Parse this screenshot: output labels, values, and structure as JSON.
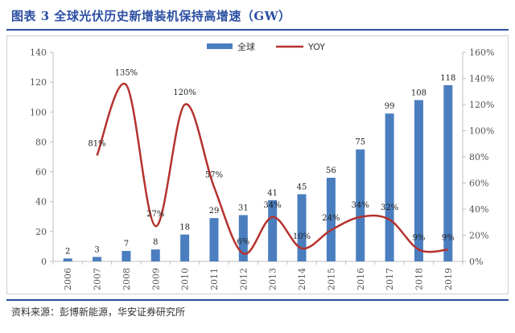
{
  "title": "图表 3 全球光伏历史新增装机保持高增速（GW）",
  "source": "资料来源：彭博新能源，华安证券研究所",
  "colors": {
    "bar": "#4a7ebf",
    "line": "#b5322e",
    "title": "#2b4fa3"
  },
  "chart_data": {
    "type": "bar+line",
    "categories": [
      "2006",
      "2007",
      "2008",
      "2009",
      "2010",
      "2011",
      "2012",
      "2013",
      "2014",
      "2015",
      "2016",
      "2017",
      "2018",
      "2019"
    ],
    "series": [
      {
        "name": "全球",
        "type": "bar",
        "axis": "left",
        "values": [
          2,
          3,
          7,
          8,
          18,
          29,
          31,
          41,
          45,
          56,
          75,
          99,
          108,
          118
        ],
        "labels": [
          "2",
          "3",
          "7",
          "8",
          "18",
          "29",
          "31",
          "41",
          "45",
          "56",
          "75",
          "99",
          "108",
          "118"
        ]
      },
      {
        "name": "YOY",
        "type": "line",
        "axis": "right",
        "values": [
          null,
          81,
          135,
          27,
          120,
          57,
          6,
          34,
          10,
          24,
          34,
          32,
          9,
          9
        ],
        "labels": [
          "",
          "81%",
          "135%",
          "27%",
          "120%",
          "57%",
          "6%",
          "34%",
          "10%",
          "24%",
          "34%",
          "32%",
          "9%",
          "9%"
        ]
      }
    ],
    "y_left": {
      "min": 0,
      "max": 140,
      "ticks": [
        "0",
        "20",
        "40",
        "60",
        "80",
        "100",
        "120",
        "140"
      ]
    },
    "y_right": {
      "min": 0,
      "max": 160,
      "ticks": [
        "0%",
        "20%",
        "40%",
        "60%",
        "80%",
        "100%",
        "120%",
        "140%",
        "160%"
      ]
    },
    "legend": "top-center",
    "grid": false
  }
}
